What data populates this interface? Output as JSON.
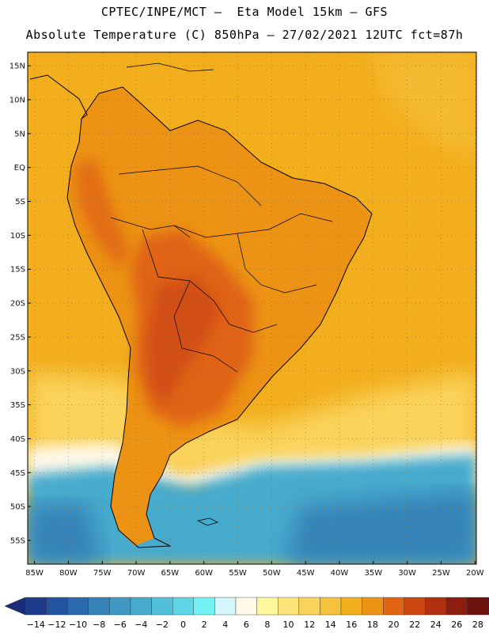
{
  "header": {
    "line1": "CPTEC/INPE/MCT –  Eta Model 15km – GFS",
    "line2": "Absolute Temperature (C) 850hPa – 27/02/2021 12UTC fct=87h"
  },
  "axes": {
    "lat_labels": [
      "15N",
      "10N",
      "5N",
      "EQ",
      "5S",
      "10S",
      "15S",
      "20S",
      "25S",
      "30S",
      "35S",
      "40S",
      "45S",
      "50S",
      "55S"
    ],
    "lon_labels": [
      "85W",
      "80W",
      "75W",
      "70W",
      "65W",
      "60W",
      "55W",
      "50W",
      "45W",
      "40W",
      "35W",
      "30W",
      "25W",
      "20W"
    ]
  },
  "colorbar": {
    "labels": [
      "-14",
      "-12",
      "-10",
      "-8",
      "-6",
      "-4",
      "-2",
      "0",
      "2",
      "4",
      "6",
      "8",
      "10",
      "12",
      "14",
      "16",
      "18",
      "20",
      "22",
      "24",
      "26",
      "28"
    ],
    "colors": [
      "#1e3c8c",
      "#2453a0",
      "#2b6aad",
      "#3582b8",
      "#3f97c4",
      "#47abce",
      "#52c0da",
      "#5fd6e6",
      "#74f2f4",
      "#d4f6fb",
      "#fff8e8",
      "#fef79e",
      "#fde47a",
      "#fad35c",
      "#f6c23e",
      "#f2ae1c",
      "#ec9214",
      "#e06412",
      "#cc4612",
      "#b03010",
      "#8c1e10",
      "#6e1410"
    ],
    "under_color": "#1a2c78",
    "over_color": "#6a0a22"
  },
  "map": {
    "ocean_north_color": "#f2ae1c",
    "land_color": "#ec9214",
    "hot_core_color": "#e06412",
    "warm_south_color": "#fad35c",
    "cold_band_color": "#47abce",
    "deep_cold_color": "#3582b8",
    "coast_color": "#000000"
  }
}
